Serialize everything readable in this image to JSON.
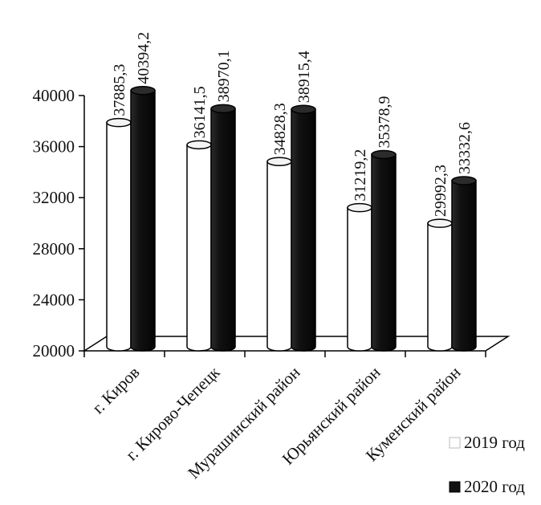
{
  "chart_data": {
    "type": "bar",
    "categories": [
      "г. Киров",
      "г. Кирово-Чепецк",
      "Мурашинский район",
      "Юрьянский район",
      "Куменский район"
    ],
    "series": [
      {
        "name": "2019 год",
        "values": [
          37885.3,
          36141.5,
          34828.3,
          31219.2,
          29992.3
        ],
        "labels": [
          "37885,3",
          "36141,5",
          "34828,3",
          "31219,2",
          "29992,3"
        ],
        "color": "#ffffff"
      },
      {
        "name": "2020 год",
        "values": [
          40394.2,
          38970.1,
          38915.4,
          35378.9,
          33332.6
        ],
        "labels": [
          "40394,2",
          "38970,1",
          "38915,4",
          "35378,9",
          "33332,6"
        ],
        "color": "#111111"
      }
    ],
    "y_ticks": [
      "20000",
      "24000",
      "28000",
      "32000",
      "36000",
      "40000"
    ],
    "ylim": [
      20000,
      40000
    ],
    "grid": false,
    "legend_position": "bottom-right",
    "style": "3d-cylinder"
  }
}
